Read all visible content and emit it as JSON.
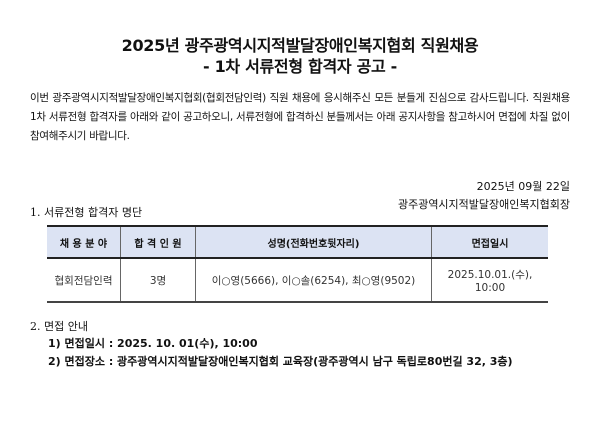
{
  "title": {
    "line1": "2025년 광주광역시지적발달장애인복지협회 직원채용",
    "line2": "- 1차 서류전형 합격자 공고 -"
  },
  "intro": "  이번 광주광역시지적발달장애인복지협회(협회전담인력) 직원 채용에 응시해주신 모든 분들게 진심으로 감사드립니다. 직원채용 1차 서류전형 합격자를 아래와 같이 공고하오니, 서류전형에 합격하신 분들께서는 아래 공지사항을 참고하시어 면접에 차질 없이 참여해주시기 바랍니다.",
  "date": "2025년 09월 22일",
  "issuer": "광주광역시지적발달장애인복지협회장",
  "section1": {
    "heading": "1. 서류전형 합격자 명단",
    "columns": [
      "채 용 분 야",
      "합 격 인 원",
      "성명(전화번호뒷자리)",
      "면접일시"
    ],
    "rows": [
      [
        "협회전담인력",
        "3명",
        "이○영(5666), 이○솔(6254), 최○영(9502)",
        "2025.10.01.(수), 10:00"
      ]
    ]
  },
  "section2": {
    "heading": "2. 면접 안내",
    "items": [
      "1) 면접일시 : 2025. 10. 01(수), 10:00",
      "2) 면접장소 : 광주광역시지적발달장애인복지협회 교육장(광주광역시 남구 독립로80번길 32, 3층)"
    ]
  },
  "colors": {
    "header_fill": "#dce3f3"
  }
}
